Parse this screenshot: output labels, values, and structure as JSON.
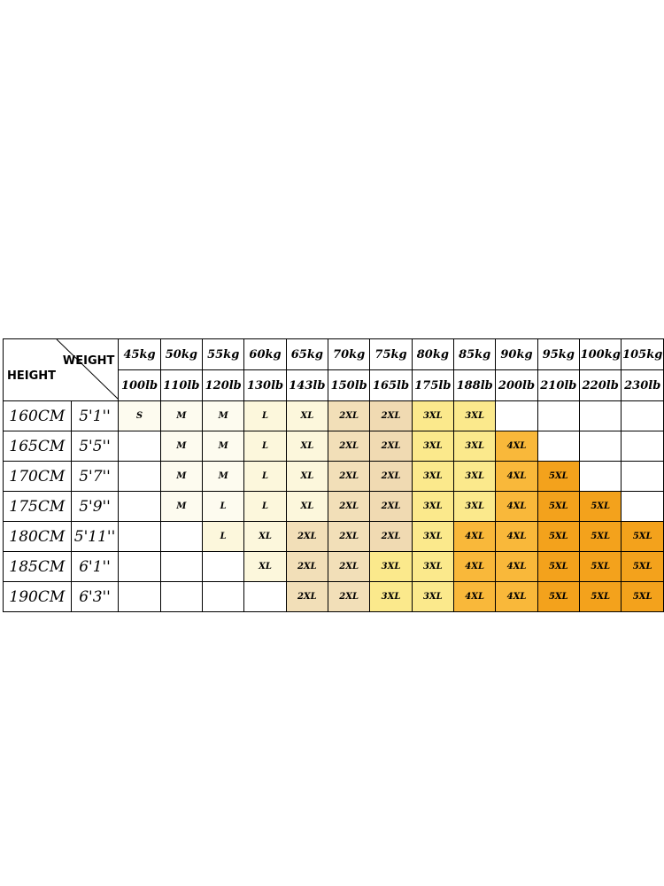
{
  "header": {
    "weight_label": "WEIGHT",
    "height_label": "HEIGHT",
    "weights_kg": [
      "45kg",
      "50kg",
      "55kg",
      "60kg",
      "65kg",
      "70kg",
      "75kg",
      "80kg",
      "85kg",
      "90kg",
      "95kg",
      "100kg",
      "105kg"
    ],
    "weights_lb": [
      "100lb",
      "110lb",
      "120lb",
      "130lb",
      "143lb",
      "150lb",
      "165lb",
      "175lb",
      "188lb",
      "200lb",
      "210lb",
      "220lb",
      "230lb"
    ]
  },
  "colors": {
    "c0": "#ffffff",
    "c1": "#fdfbef",
    "c2": "#fcf7dc",
    "c3": "#f2dfb8",
    "c4": "#f0dab2",
    "c5": "#fbe98c",
    "c6": "#fbe06f",
    "c7": "#f9b83a",
    "c8": "#f3a21c"
  },
  "rows": [
    {
      "cm": "160CM",
      "ft": "5'1''",
      "sizes": [
        "S",
        "M",
        "M",
        "L",
        "XL",
        "2XL",
        "2XL",
        "3XL",
        "3XL",
        "",
        "",
        "",
        ""
      ]
    },
    {
      "cm": "165CM",
      "ft": "5'5''",
      "sizes": [
        "",
        "M",
        "M",
        "L",
        "XL",
        "2XL",
        "2XL",
        "3XL",
        "3XL",
        "4XL",
        "",
        "",
        ""
      ]
    },
    {
      "cm": "170CM",
      "ft": "5'7''",
      "sizes": [
        "",
        "M",
        "M",
        "L",
        "XL",
        "2XL",
        "2XL",
        "3XL",
        "3XL",
        "4XL",
        "5XL",
        "",
        ""
      ]
    },
    {
      "cm": "175CM",
      "ft": "5'9''",
      "sizes": [
        "",
        "M",
        "L",
        "L",
        "XL",
        "2XL",
        "2XL",
        "3XL",
        "3XL",
        "4XL",
        "5XL",
        "5XL",
        ""
      ]
    },
    {
      "cm": "180CM",
      "ft": "5'11''",
      "sizes": [
        "",
        "",
        "L",
        "XL",
        "2XL",
        "2XL",
        "2XL",
        "3XL",
        "4XL",
        "4XL",
        "5XL",
        "5XL",
        "5XL"
      ]
    },
    {
      "cm": "185CM",
      "ft": "6'1''",
      "sizes": [
        "",
        "",
        "",
        "XL",
        "2XL",
        "2XL",
        "3XL",
        "3XL",
        "4XL",
        "4XL",
        "5XL",
        "5XL",
        "5XL"
      ]
    },
    {
      "cm": "190CM",
      "ft": "6'3''",
      "sizes": [
        "",
        "",
        "",
        "",
        "2XL",
        "2XL",
        "3XL",
        "3XL",
        "4XL",
        "4XL",
        "5XL",
        "5XL",
        "5XL"
      ]
    }
  ],
  "cell_color_keys": [
    [
      "c1",
      "c1",
      "c1",
      "c2",
      "c2",
      "c3",
      "c4",
      "c5",
      "c5",
      "c0",
      "c0",
      "c0",
      "c0"
    ],
    [
      "c0",
      "c1",
      "c1",
      "c2",
      "c2",
      "c3",
      "c4",
      "c5",
      "c5",
      "c7",
      "c0",
      "c0",
      "c0"
    ],
    [
      "c0",
      "c1",
      "c1",
      "c2",
      "c2",
      "c3",
      "c4",
      "c5",
      "c5",
      "c7",
      "c8",
      "c0",
      "c0"
    ],
    [
      "c0",
      "c1",
      "c1",
      "c2",
      "c2",
      "c3",
      "c4",
      "c5",
      "c5",
      "c7",
      "c8",
      "c8",
      "c0"
    ],
    [
      "c0",
      "c0",
      "c2",
      "c2",
      "c3",
      "c3",
      "c4",
      "c5",
      "c7",
      "c7",
      "c8",
      "c8",
      "c8"
    ],
    [
      "c0",
      "c0",
      "c0",
      "c2",
      "c3",
      "c3",
      "c5",
      "c5",
      "c7",
      "c7",
      "c8",
      "c8",
      "c8"
    ],
    [
      "c0",
      "c0",
      "c0",
      "c0",
      "c3",
      "c3",
      "c5",
      "c5",
      "c7",
      "c7",
      "c8",
      "c8",
      "c8"
    ]
  ]
}
